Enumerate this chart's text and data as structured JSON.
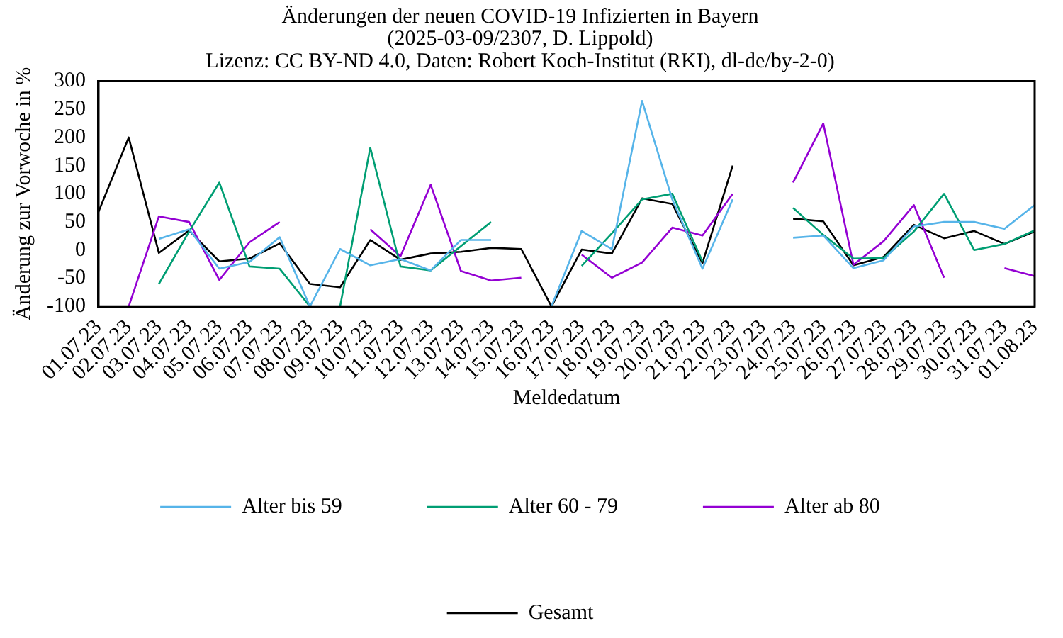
{
  "chart_data": {
    "type": "line",
    "title": [
      "Änderungen der neuen COVID-19 Infizierten in Bayern",
      "(2025-03-09/2307, D. Lippold)",
      "Lizenz: CC BY-ND 4.0, Daten: Robert Koch-Institut (RKI), dl-de/by-2-0)"
    ],
    "xlabel": "Meldedatum",
    "ylabel": "Änderung zur Vorwoche in %",
    "categories": [
      "01.07.23",
      "02.07.23",
      "03.07.23",
      "04.07.23",
      "05.07.23",
      "06.07.23",
      "07.07.23",
      "08.07.23",
      "09.07.23",
      "10.07.23",
      "11.07.23",
      "12.07.23",
      "13.07.23",
      "14.07.23",
      "15.07.23",
      "16.07.23",
      "17.07.23",
      "18.07.23",
      "19.07.23",
      "20.07.23",
      "21.07.23",
      "22.07.23",
      "23.07.23",
      "24.07.23",
      "25.07.23",
      "26.07.23",
      "27.07.23",
      "28.07.23",
      "29.07.23",
      "30.07.23",
      "31.07.23",
      "01.08.23"
    ],
    "series": [
      {
        "name": "Alter bis 59",
        "color": "#56b4e9",
        "values": [
          null,
          null,
          20,
          37,
          -33,
          -21,
          23,
          -100,
          2,
          -27,
          -16,
          -36,
          18,
          18,
          null,
          -100,
          34,
          2,
          265,
          90,
          -33,
          90,
          null,
          22,
          26,
          -32,
          -18,
          42,
          50,
          50,
          38,
          80
        ]
      },
      {
        "name": "Alter 60 - 79",
        "color": "#009e73",
        "values": [
          null,
          null,
          -60,
          33,
          120,
          -29,
          -33,
          -100,
          -100,
          182,
          -29,
          -36,
          7,
          50,
          null,
          null,
          -28,
          30,
          90,
          100,
          -20,
          null,
          null,
          75,
          27,
          -15,
          -14,
          33,
          100,
          0,
          11,
          35
        ]
      },
      {
        "name": "Alter ab 80",
        "color": "#9400d3",
        "values": [
          null,
          -100,
          60,
          50,
          -53,
          14,
          50,
          null,
          null,
          37,
          -11,
          116,
          -37,
          -54,
          -49,
          null,
          -8,
          -49,
          -22,
          40,
          26,
          100,
          null,
          120,
          225,
          -26,
          16,
          80,
          -49,
          null,
          -32,
          -46
        ]
      },
      {
        "name": "Gesamt",
        "color": "#000000",
        "values": [
          68,
          200,
          -5,
          35,
          -20,
          -15,
          12,
          -60,
          -66,
          18,
          -17,
          -6,
          -3,
          4,
          2,
          -100,
          1,
          -6,
          92,
          82,
          -23,
          150,
          null,
          56,
          51,
          -27,
          -12,
          45,
          21,
          34,
          11,
          33
        ]
      }
    ],
    "ylim": [
      -100,
      300
    ],
    "yticks": [
      -100,
      -50,
      0,
      50,
      100,
      150,
      200,
      250,
      300
    ],
    "grid": false,
    "legend": "bottom",
    "marker": "none",
    "line_style": "solid"
  }
}
